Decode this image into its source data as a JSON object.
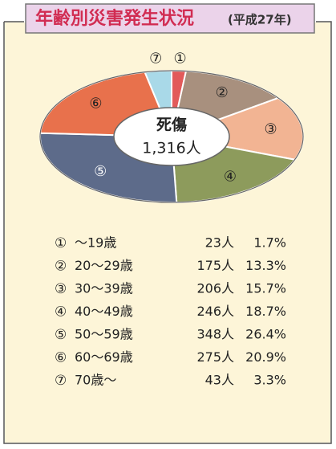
{
  "chart_data": {
    "type": "pie",
    "title": "年齢別災害発生状況",
    "subtitle": "(平成27年)",
    "center_title": "死傷",
    "total_label": "1,316人",
    "markers": [
      "①",
      "②",
      "③",
      "④",
      "⑤",
      "⑥",
      "⑦"
    ],
    "categories": [
      "～19歳",
      "20～29歳",
      "30～39歳",
      "40～49歳",
      "50～59歳",
      "60～69歳",
      "70歳～"
    ],
    "values": [
      23,
      175,
      206,
      246,
      348,
      275,
      43
    ],
    "value_labels": [
      "23人",
      "175人",
      "206人",
      "246人",
      "348人",
      "275人",
      "43人"
    ],
    "percents": [
      1.7,
      13.3,
      15.7,
      18.7,
      26.4,
      20.9,
      3.3
    ],
    "percent_labels": [
      "1.7%",
      "13.3%",
      "15.7%",
      "18.7%",
      "26.4%",
      "20.9%",
      "3.3%"
    ],
    "colors": [
      "#e25a5a",
      "#a8907e",
      "#f2b493",
      "#8d9b5c",
      "#5d6b8a",
      "#e8714c",
      "#a9d9e8"
    ]
  }
}
